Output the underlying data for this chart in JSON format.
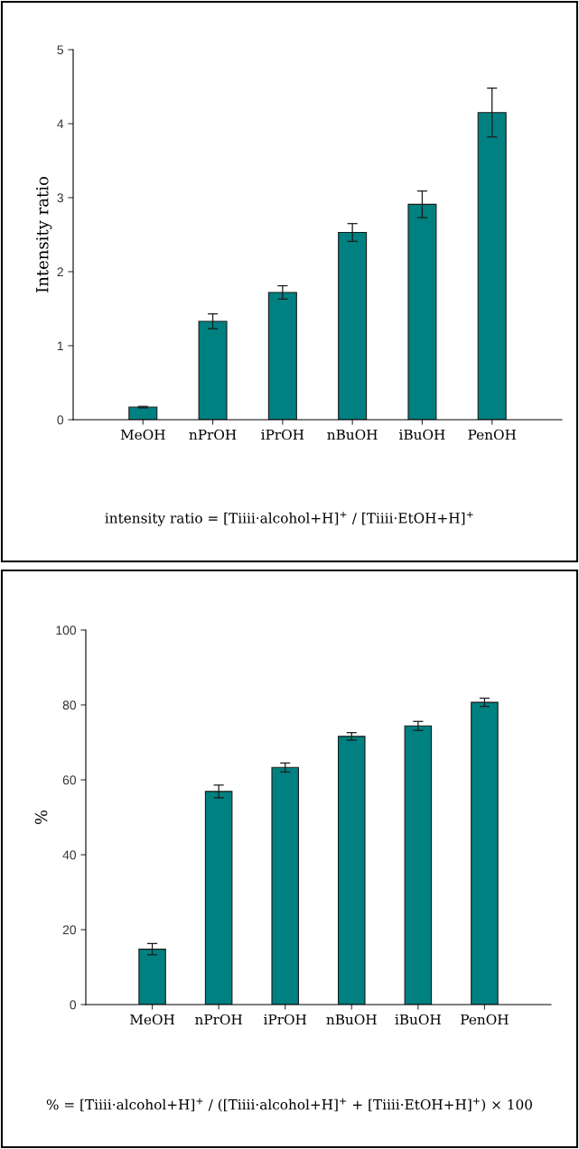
{
  "chart_data": [
    {
      "type": "bar",
      "ylabel": "Intensity ratio",
      "categories": [
        "MeOH",
        "nPrOH",
        "iPrOH",
        "nBuOH",
        "iBuOH",
        "PenOH"
      ],
      "values": [
        0.17,
        1.33,
        1.72,
        2.53,
        2.91,
        4.15
      ],
      "errors": [
        0.01,
        0.1,
        0.09,
        0.12,
        0.18,
        0.33
      ],
      "color": "#008080",
      "ylim": [
        0,
        5
      ],
      "yticks": [
        0,
        1,
        2,
        3,
        4,
        5
      ],
      "grid": false,
      "annotations": [
        "intensity ratio = [Tiiii·alcohol+H]$^{+}$ / [Tiiii·EtOH+H]$^{+}$"
      ]
    },
    {
      "type": "bar",
      "ylabel": "%",
      "categories": [
        "MeOH",
        "nPrOH",
        "iPrOH",
        "nBuOH",
        "iBuOH",
        "PenOH"
      ],
      "values": [
        14.8,
        56.9,
        63.3,
        71.6,
        74.4,
        80.7
      ],
      "errors": [
        1.5,
        1.7,
        1.2,
        1.0,
        1.2,
        1.1
      ],
      "color": "#008080",
      "ylim": [
        0,
        100
      ],
      "yticks": [
        0,
        20,
        40,
        60,
        80,
        100
      ],
      "grid": false,
      "annotations": [
        "% = [Tiiii·alcohol+H]$^{+}$ / ([Tiiii·alcohol+H]$^{+}$ + [Tiiii·EtOH+H]$^{+}$) × 100"
      ]
    }
  ]
}
